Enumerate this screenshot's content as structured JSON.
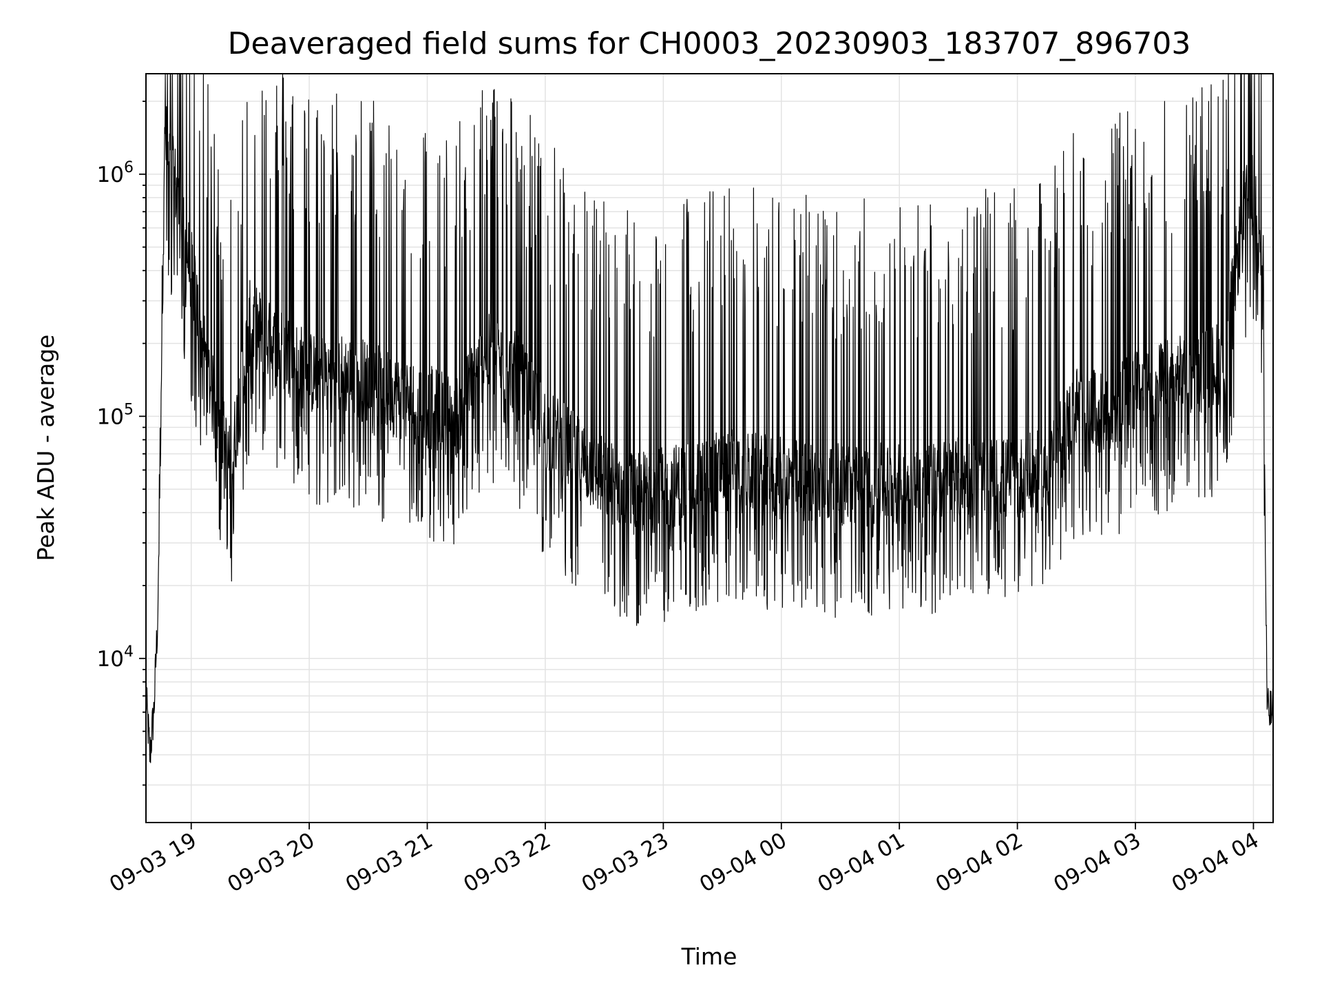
{
  "chart_data": {
    "type": "line",
    "title": "Deaveraged field sums for CH0003_20230903_183707_896703",
    "xlabel": "Time",
    "ylabel": "Peak ADU - average",
    "yscale": "log",
    "grid": true,
    "xlim": [
      "09-03 18:37",
      "09-04 04:10"
    ],
    "ylim": [
      2100,
      2600000
    ],
    "x_tick_labels": [
      "09-03 19",
      "09-03 20",
      "09-03 21",
      "09-03 22",
      "09-03 23",
      "09-04 00",
      "09-04 01",
      "09-04 02",
      "09-04 03",
      "09-04 04"
    ],
    "y_tick_labels": [
      {
        "base": "10",
        "exp": "4",
        "value": 10000
      },
      {
        "base": "10",
        "exp": "5",
        "value": 100000
      },
      {
        "base": "10",
        "exp": "6",
        "value": 1000000
      }
    ],
    "series": [
      {
        "color": "#000000",
        "x": [
          "09-03 18:37",
          "09-03 18:39",
          "09-03 18:41",
          "09-03 18:43",
          "09-03 18:45",
          "09-03 18:46",
          "09-03 18:47",
          "09-03 18:48",
          "09-03 18:50",
          "09-03 18:52",
          "09-03 18:55",
          "09-03 19:00",
          "09-03 19:05",
          "09-03 19:10",
          "09-03 19:15",
          "09-03 19:20",
          "09-03 19:30",
          "09-03 19:40",
          "09-03 19:50",
          "09-03 20:00",
          "09-03 20:15",
          "09-03 20:30",
          "09-03 20:45",
          "09-03 21:00",
          "09-03 21:15",
          "09-03 21:30",
          "09-03 21:45",
          "09-03 22:00",
          "09-03 22:15",
          "09-03 22:30",
          "09-03 22:45",
          "09-03 23:00",
          "09-03 23:30",
          "09-04 00:00",
          "09-04 00:30",
          "09-04 01:00",
          "09-04 01:30",
          "09-04 02:00",
          "09-04 02:15",
          "09-04 02:30",
          "09-04 02:45",
          "09-04 03:00",
          "09-04 03:15",
          "09-04 03:30",
          "09-04 03:45",
          "09-04 03:55",
          "09-04 04:00",
          "09-04 04:03",
          "09-04 04:05",
          "09-04 04:06",
          "09-04 04:07",
          "09-04 04:10"
        ],
        "y": [
          7000,
          4000,
          6000,
          15000,
          200000,
          1000000,
          1400000,
          1200000,
          1000000,
          900000,
          600000,
          400000,
          220000,
          130000,
          90000,
          60000,
          250000,
          200000,
          180000,
          150000,
          150000,
          140000,
          120000,
          110000,
          100000,
          180000,
          150000,
          90000,
          70000,
          55000,
          48000,
          50000,
          60000,
          55000,
          52000,
          52000,
          55000,
          55000,
          60000,
          110000,
          100000,
          130000,
          140000,
          150000,
          170000,
          700000,
          850000,
          700000,
          400000,
          30000,
          6000,
          6000
        ]
      }
    ]
  }
}
